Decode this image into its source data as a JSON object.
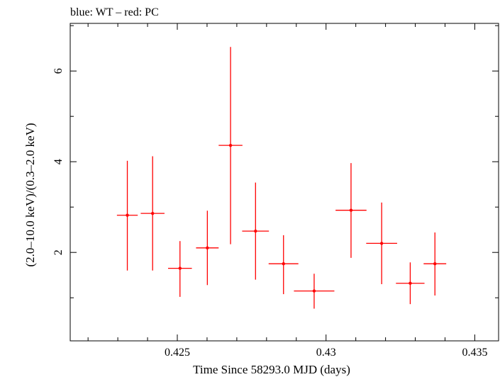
{
  "chart_data": {
    "type": "scatter",
    "title": "blue: WT – red: PC",
    "xlabel": "Time Since 58293.0 MJD (days)",
    "ylabel": "(2.0–10.0 keV)/(0.3–2.0 keV)",
    "xlim": [
      0.4214,
      0.4358
    ],
    "ylim": [
      0.05,
      7.05
    ],
    "x_ticks": [
      0.425,
      0.43,
      0.435
    ],
    "x_tick_labels": [
      "0.425",
      "0.43",
      "0.435"
    ],
    "y_ticks": [
      2,
      4,
      6
    ],
    "y_tick_labels": [
      "2",
      "4",
      "6"
    ],
    "grid": false,
    "series": [
      {
        "name": "PC",
        "color": "#ff0000",
        "points": [
          {
            "x": 0.42332,
            "xerr": 0.00035,
            "y": 2.82,
            "ylo": 1.6,
            "yhi": 4.02
          },
          {
            "x": 0.42417,
            "xerr": 0.0004,
            "y": 2.86,
            "ylo": 1.6,
            "yhi": 4.12
          },
          {
            "x": 0.42509,
            "xerr": 0.0004,
            "y": 1.65,
            "ylo": 1.02,
            "yhi": 2.25
          },
          {
            "x": 0.42601,
            "xerr": 0.00038,
            "y": 2.1,
            "ylo": 1.28,
            "yhi": 2.92
          },
          {
            "x": 0.42679,
            "xerr": 0.0004,
            "y": 4.36,
            "ylo": 2.18,
            "yhi": 6.53
          },
          {
            "x": 0.42763,
            "xerr": 0.00045,
            "y": 2.47,
            "ylo": 1.4,
            "yhi": 3.54
          },
          {
            "x": 0.42857,
            "xerr": 0.0005,
            "y": 1.75,
            "ylo": 1.08,
            "yhi": 2.38
          },
          {
            "x": 0.4296,
            "xerr": 0.00068,
            "y": 1.15,
            "ylo": 0.76,
            "yhi": 1.53
          },
          {
            "x": 0.43084,
            "xerr": 0.00052,
            "y": 2.93,
            "ylo": 1.88,
            "yhi": 3.97
          },
          {
            "x": 0.43187,
            "xerr": 0.00052,
            "y": 2.2,
            "ylo": 1.3,
            "yhi": 3.1
          },
          {
            "x": 0.43283,
            "xerr": 0.00048,
            "y": 1.32,
            "ylo": 0.86,
            "yhi": 1.78
          },
          {
            "x": 0.43366,
            "xerr": 0.00038,
            "y": 1.75,
            "ylo": 1.05,
            "yhi": 2.44
          }
        ]
      }
    ]
  }
}
